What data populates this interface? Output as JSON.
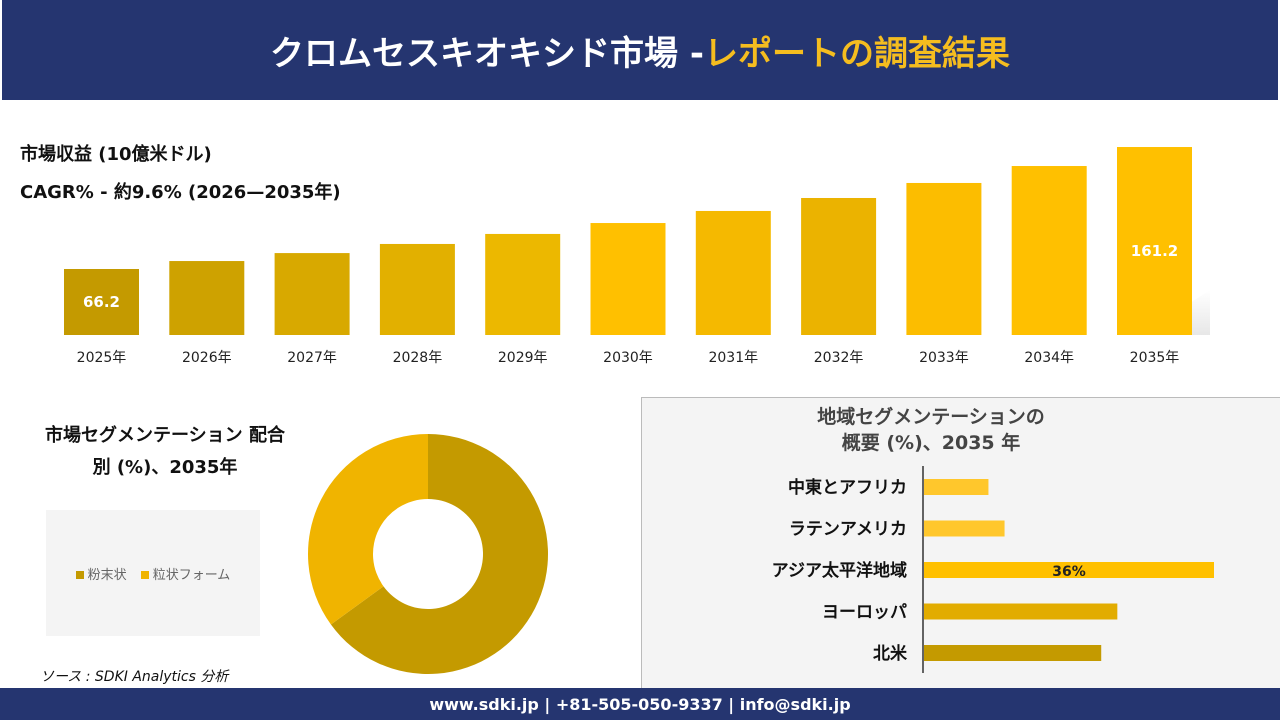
{
  "header": {
    "title_main": "クロムセスキオキシド市場 -",
    "title_highlight": "レポートの調査結果"
  },
  "meta": {
    "revenue_label": "市場収益 (10億米ドル)",
    "cagr_label": "CAGR% - 約9.6% (2026—2035年)"
  },
  "colors": {
    "header_bg": "#253570",
    "accent": "#ffc000",
    "dark_gold": "#c49a00"
  },
  "chart_data": [
    {
      "type": "bar",
      "categories": [
        "2025年",
        "2026年",
        "2027年",
        "2028年",
        "2029年",
        "2030年",
        "2031年",
        "2032年",
        "2033年",
        "2034年",
        "2035年"
      ],
      "values": [
        66.2,
        72.4,
        78.6,
        85.7,
        93.5,
        102.0,
        111.4,
        121.5,
        133.2,
        146.4,
        161.2
      ],
      "data_labels": {
        "0": "66.2",
        "10": "161.2"
      },
      "grid": false
    },
    {
      "type": "pie",
      "title": "市場セグメンテーション 配合別 (%)、2035年",
      "donut": true,
      "categories": [
        "粉末状",
        "粒状フォーム"
      ],
      "values": [
        65,
        35
      ],
      "colors": [
        "#c49a00",
        "#f0b400"
      ],
      "legend_placement": "left"
    },
    {
      "type": "bar",
      "orientation": "horizontal",
      "title": "地域セグメンテーションの 概要 (%)、2035 年",
      "categories": [
        "中東とアフリカ",
        "ラテンアメリカ",
        "アジア太平洋地域",
        "ヨーロッパ",
        "北米"
      ],
      "values": [
        8,
        10,
        36,
        24,
        22
      ],
      "data_labels": {
        "2": "36%"
      },
      "colors": [
        "#ffc72c",
        "#ffc72c",
        "#ffc000",
        "#e2ac00",
        "#c49a00"
      ]
    }
  ],
  "source": "ソース : SDKI Analytics 分析",
  "footer": "www.sdki.jp | +81-505-050-9337 | info@sdki.jp"
}
